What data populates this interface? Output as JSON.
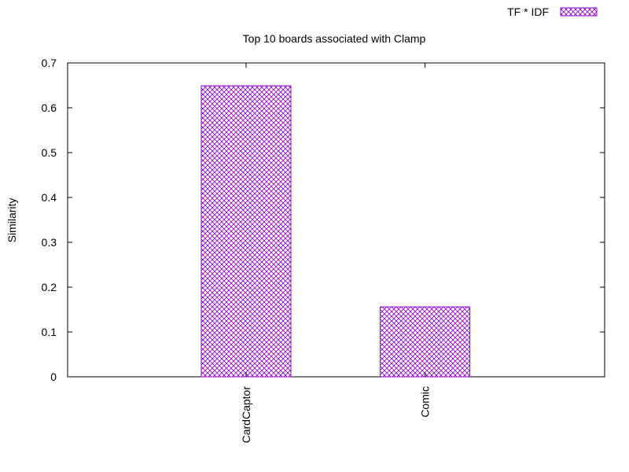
{
  "chart_data": {
    "type": "bar",
    "title": "Top 10 boards associated with Clamp",
    "ylabel": "Similarity",
    "xlabel": "",
    "categories": [
      "CardCaptor",
      "Comic"
    ],
    "series": [
      {
        "name": "TF * IDF",
        "values": [
          0.649,
          0.156
        ]
      }
    ],
    "ylim": [
      0,
      0.7
    ],
    "yticks": [
      "0",
      "0.1",
      "0.2",
      "0.3",
      "0.4",
      "0.5",
      "0.6",
      "0.7"
    ],
    "grid": false,
    "legend_position": "top-right",
    "colors": {
      "bar": "#9400d3",
      "axis": "#000000"
    },
    "bar_fill": "crosshatch"
  }
}
